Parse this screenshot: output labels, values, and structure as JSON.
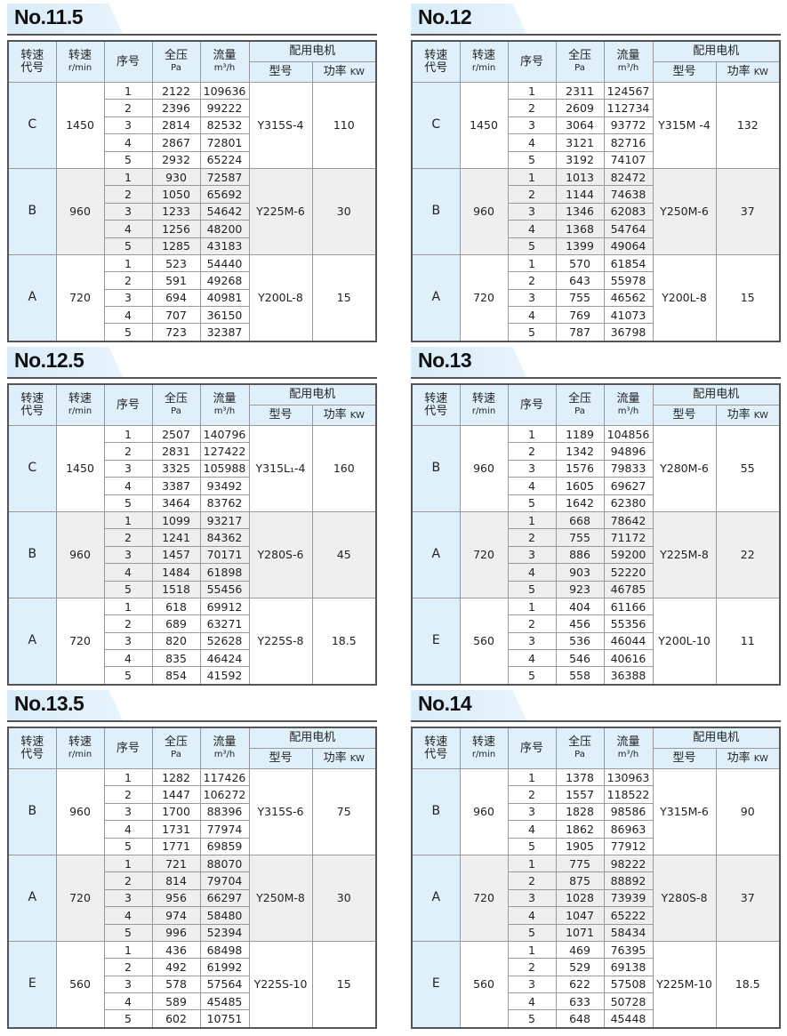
{
  "headers": {
    "code_l1": "转速",
    "code_l2": "代号",
    "speed": "转速",
    "speed_unit": "r/min",
    "seq": "序号",
    "pressure": "全压",
    "pressure_unit": "Pa",
    "flow": "流量",
    "flow_unit": "m³/h",
    "motor": "配用电机",
    "model": "型号",
    "power": "功率",
    "power_unit": "KW"
  },
  "colors": {
    "header_bg": "#dff0fb",
    "alt_group_bg": "#efefef",
    "border": "#555555"
  },
  "panels": [
    {
      "title": "No.11.5",
      "groups": [
        {
          "code": "C",
          "speed": "1450",
          "model": "Y315S-4",
          "power": "110",
          "rows": [
            [
              "1",
              "2122",
              "109636"
            ],
            [
              "2",
              "2396",
              "99222"
            ],
            [
              "3",
              "2814",
              "82532"
            ],
            [
              "4",
              "2867",
              "72801"
            ],
            [
              "5",
              "2932",
              "65224"
            ]
          ]
        },
        {
          "code": "B",
          "speed": "960",
          "model": "Y225M-6",
          "power": "30",
          "rows": [
            [
              "1",
              "930",
              "72587"
            ],
            [
              "2",
              "1050",
              "65692"
            ],
            [
              "3",
              "1233",
              "54642"
            ],
            [
              "4",
              "1256",
              "48200"
            ],
            [
              "5",
              "1285",
              "43183"
            ]
          ]
        },
        {
          "code": "A",
          "speed": "720",
          "model": "Y200L-8",
          "power": "15",
          "rows": [
            [
              "1",
              "523",
              "54440"
            ],
            [
              "2",
              "591",
              "49268"
            ],
            [
              "3",
              "694",
              "40981"
            ],
            [
              "4",
              "707",
              "36150"
            ],
            [
              "5",
              "723",
              "32387"
            ]
          ]
        }
      ]
    },
    {
      "title": "No.12",
      "groups": [
        {
          "code": "C",
          "speed": "1450",
          "model": "Y315M  -4",
          "power": "132",
          "rows": [
            [
              "1",
              "2311",
              "124567"
            ],
            [
              "2",
              "2609",
              "112734"
            ],
            [
              "3",
              "3064",
              "93772"
            ],
            [
              "4",
              "3121",
              "82716"
            ],
            [
              "5",
              "3192",
              "74107"
            ]
          ]
        },
        {
          "code": "B",
          "speed": "960",
          "model": "Y250M-6",
          "power": "37",
          "rows": [
            [
              "1",
              "1013",
              "82472"
            ],
            [
              "2",
              "1144",
              "74638"
            ],
            [
              "3",
              "1346",
              "62083"
            ],
            [
              "4",
              "1368",
              "54764"
            ],
            [
              "5",
              "1399",
              "49064"
            ]
          ]
        },
        {
          "code": "A",
          "speed": "720",
          "model": "Y200L-8",
          "power": "15",
          "rows": [
            [
              "1",
              "570",
              "61854"
            ],
            [
              "2",
              "643",
              "55978"
            ],
            [
              "3",
              "755",
              "46562"
            ],
            [
              "4",
              "769",
              "41073"
            ],
            [
              "5",
              "787",
              "36798"
            ]
          ]
        }
      ]
    },
    {
      "title": "No.12.5",
      "groups": [
        {
          "code": "C",
          "speed": "1450",
          "model": "Y315L₁-4",
          "power": "160",
          "rows": [
            [
              "1",
              "2507",
              "140796"
            ],
            [
              "2",
              "2831",
              "127422"
            ],
            [
              "3",
              "3325",
              "105988"
            ],
            [
              "4",
              "3387",
              "93492"
            ],
            [
              "5",
              "3464",
              "83762"
            ]
          ]
        },
        {
          "code": "B",
          "speed": "960",
          "model": "Y280S-6",
          "power": "45",
          "rows": [
            [
              "1",
              "1099",
              "93217"
            ],
            [
              "2",
              "1241",
              "84362"
            ],
            [
              "3",
              "1457",
              "70171"
            ],
            [
              "4",
              "1484",
              "61898"
            ],
            [
              "5",
              "1518",
              "55456"
            ]
          ]
        },
        {
          "code": "A",
          "speed": "720",
          "model": "Y225S-8",
          "power": "18.5",
          "rows": [
            [
              "1",
              "618",
              "69912"
            ],
            [
              "2",
              "689",
              "63271"
            ],
            [
              "3",
              "820",
              "52628"
            ],
            [
              "4",
              "835",
              "46424"
            ],
            [
              "5",
              "854",
              "41592"
            ]
          ]
        }
      ]
    },
    {
      "title": "No.13",
      "groups": [
        {
          "code": "B",
          "speed": "960",
          "model": "Y280M-6",
          "power": "55",
          "rows": [
            [
              "1",
              "1189",
              "104856"
            ],
            [
              "2",
              "1342",
              "94896"
            ],
            [
              "3",
              "1576",
              "79833"
            ],
            [
              "4",
              "1605",
              "69627"
            ],
            [
              "5",
              "1642",
              "62380"
            ]
          ]
        },
        {
          "code": "A",
          "speed": "720",
          "model": "Y225M-8",
          "power": "22",
          "rows": [
            [
              "1",
              "668",
              "78642"
            ],
            [
              "2",
              "755",
              "71172"
            ],
            [
              "3",
              "886",
              "59200"
            ],
            [
              "4",
              "903",
              "52220"
            ],
            [
              "5",
              "923",
              "46785"
            ]
          ]
        },
        {
          "code": "E",
          "speed": "560",
          "model": "Y200L-10",
          "power": "11",
          "rows": [
            [
              "1",
              "404",
              "61166"
            ],
            [
              "2",
              "456",
              "55356"
            ],
            [
              "3",
              "536",
              "46044"
            ],
            [
              "4",
              "546",
              "40616"
            ],
            [
              "5",
              "558",
              "36388"
            ]
          ]
        }
      ]
    },
    {
      "title": "No.13.5",
      "groups": [
        {
          "code": "B",
          "speed": "960",
          "model": "Y315S-6",
          "power": "75",
          "rows": [
            [
              "1",
              "1282",
              "117426"
            ],
            [
              "2",
              "1447",
              "106272"
            ],
            [
              "3",
              "1700",
              "88396"
            ],
            [
              "4",
              "1731",
              "77974"
            ],
            [
              "5",
              "1771",
              "69859"
            ]
          ]
        },
        {
          "code": "A",
          "speed": "720",
          "model": "Y250M-8",
          "power": "30",
          "rows": [
            [
              "1",
              "721",
              "88070"
            ],
            [
              "2",
              "814",
              "79704"
            ],
            [
              "3",
              "956",
              "66297"
            ],
            [
              "4",
              "974",
              "58480"
            ],
            [
              "5",
              "996",
              "52394"
            ]
          ]
        },
        {
          "code": "E",
          "speed": "560",
          "model": "Y225S-10",
          "power": "15",
          "rows": [
            [
              "1",
              "436",
              "68498"
            ],
            [
              "2",
              "492",
              "61992"
            ],
            [
              "3",
              "578",
              "57564"
            ],
            [
              "4",
              "589",
              "45485"
            ],
            [
              "5",
              "602",
              "10751"
            ]
          ]
        }
      ]
    },
    {
      "title": "No.14",
      "groups": [
        {
          "code": "B",
          "speed": "960",
          "model": "Y315M-6",
          "power": "90",
          "rows": [
            [
              "1",
              "1378",
              "130963"
            ],
            [
              "2",
              "1557",
              "118522"
            ],
            [
              "3",
              "1828",
              "98586"
            ],
            [
              "4",
              "1862",
              "86963"
            ],
            [
              "5",
              "1905",
              "77912"
            ]
          ]
        },
        {
          "code": "A",
          "speed": "720",
          "model": "Y280S-8",
          "power": "37",
          "rows": [
            [
              "1",
              "775",
              "98222"
            ],
            [
              "2",
              "875",
              "88892"
            ],
            [
              "3",
              "1028",
              "73939"
            ],
            [
              "4",
              "1047",
              "65222"
            ],
            [
              "5",
              "1071",
              "58434"
            ]
          ]
        },
        {
          "code": "E",
          "speed": "560",
          "model": "Y225M-10",
          "power": "18.5",
          "rows": [
            [
              "1",
              "469",
              "76395"
            ],
            [
              "2",
              "529",
              "69138"
            ],
            [
              "3",
              "622",
              "57508"
            ],
            [
              "4",
              "633",
              "50728"
            ],
            [
              "5",
              "648",
              "45448"
            ]
          ]
        }
      ]
    }
  ]
}
